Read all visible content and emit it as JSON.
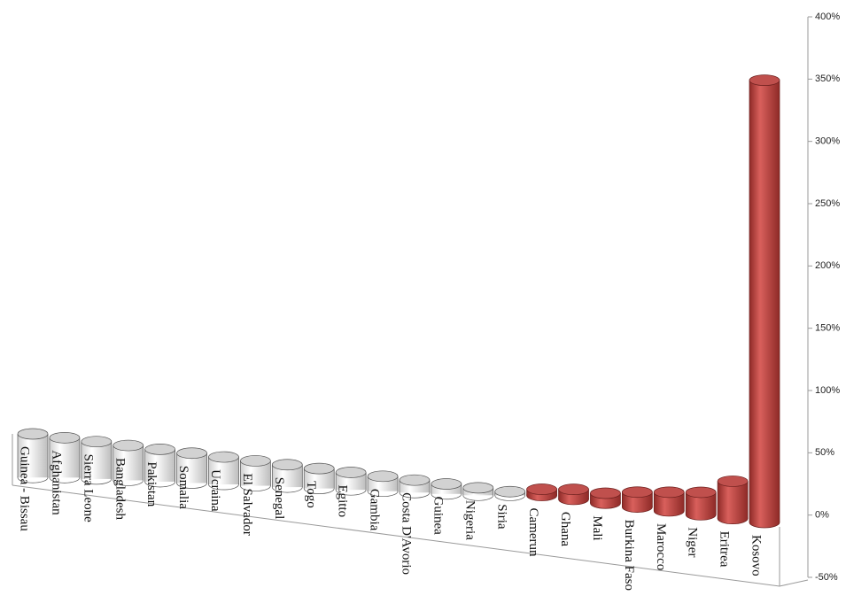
{
  "chart_data": {
    "type": "bar3d",
    "categories": [
      "Guinea - Bissau",
      "Afghanistan",
      "Sierra Leone",
      "Bangladesh",
      "Pakistan",
      "Somalia",
      "Ucraina",
      "El Salvador",
      "Senegal",
      "Togo",
      "Egitto",
      "Gambia",
      "Costa D'Avorio",
      "Guinea",
      "Nigeria",
      "Siria",
      "Camerun",
      "Ghana",
      "Mali",
      "Burkina Faso",
      "Marocco",
      "Niger",
      "Eritrea",
      "Kosovo"
    ],
    "values": [
      -35,
      -32,
      -30,
      -28,
      -26,
      -24,
      -22,
      -20,
      -18,
      -16,
      -14,
      -12,
      -10,
      -8,
      -6,
      -3,
      5,
      8,
      8,
      12,
      15,
      18,
      30,
      355
    ],
    "color": "#c0504d",
    "negative_color": "#ffffff",
    "ylim": [
      -50,
      400
    ],
    "yticks": [
      {
        "value": -50,
        "label": "-50%"
      },
      {
        "value": 0,
        "label": "0%"
      },
      {
        "value": 50,
        "label": "50%"
      },
      {
        "value": 100,
        "label": "100%"
      },
      {
        "value": 150,
        "label": "150%"
      },
      {
        "value": 200,
        "label": "200%"
      },
      {
        "value": 250,
        "label": "250%"
      },
      {
        "value": 300,
        "label": "300%"
      },
      {
        "value": 350,
        "label": "350%"
      },
      {
        "value": 400,
        "label": "400%"
      }
    ]
  }
}
